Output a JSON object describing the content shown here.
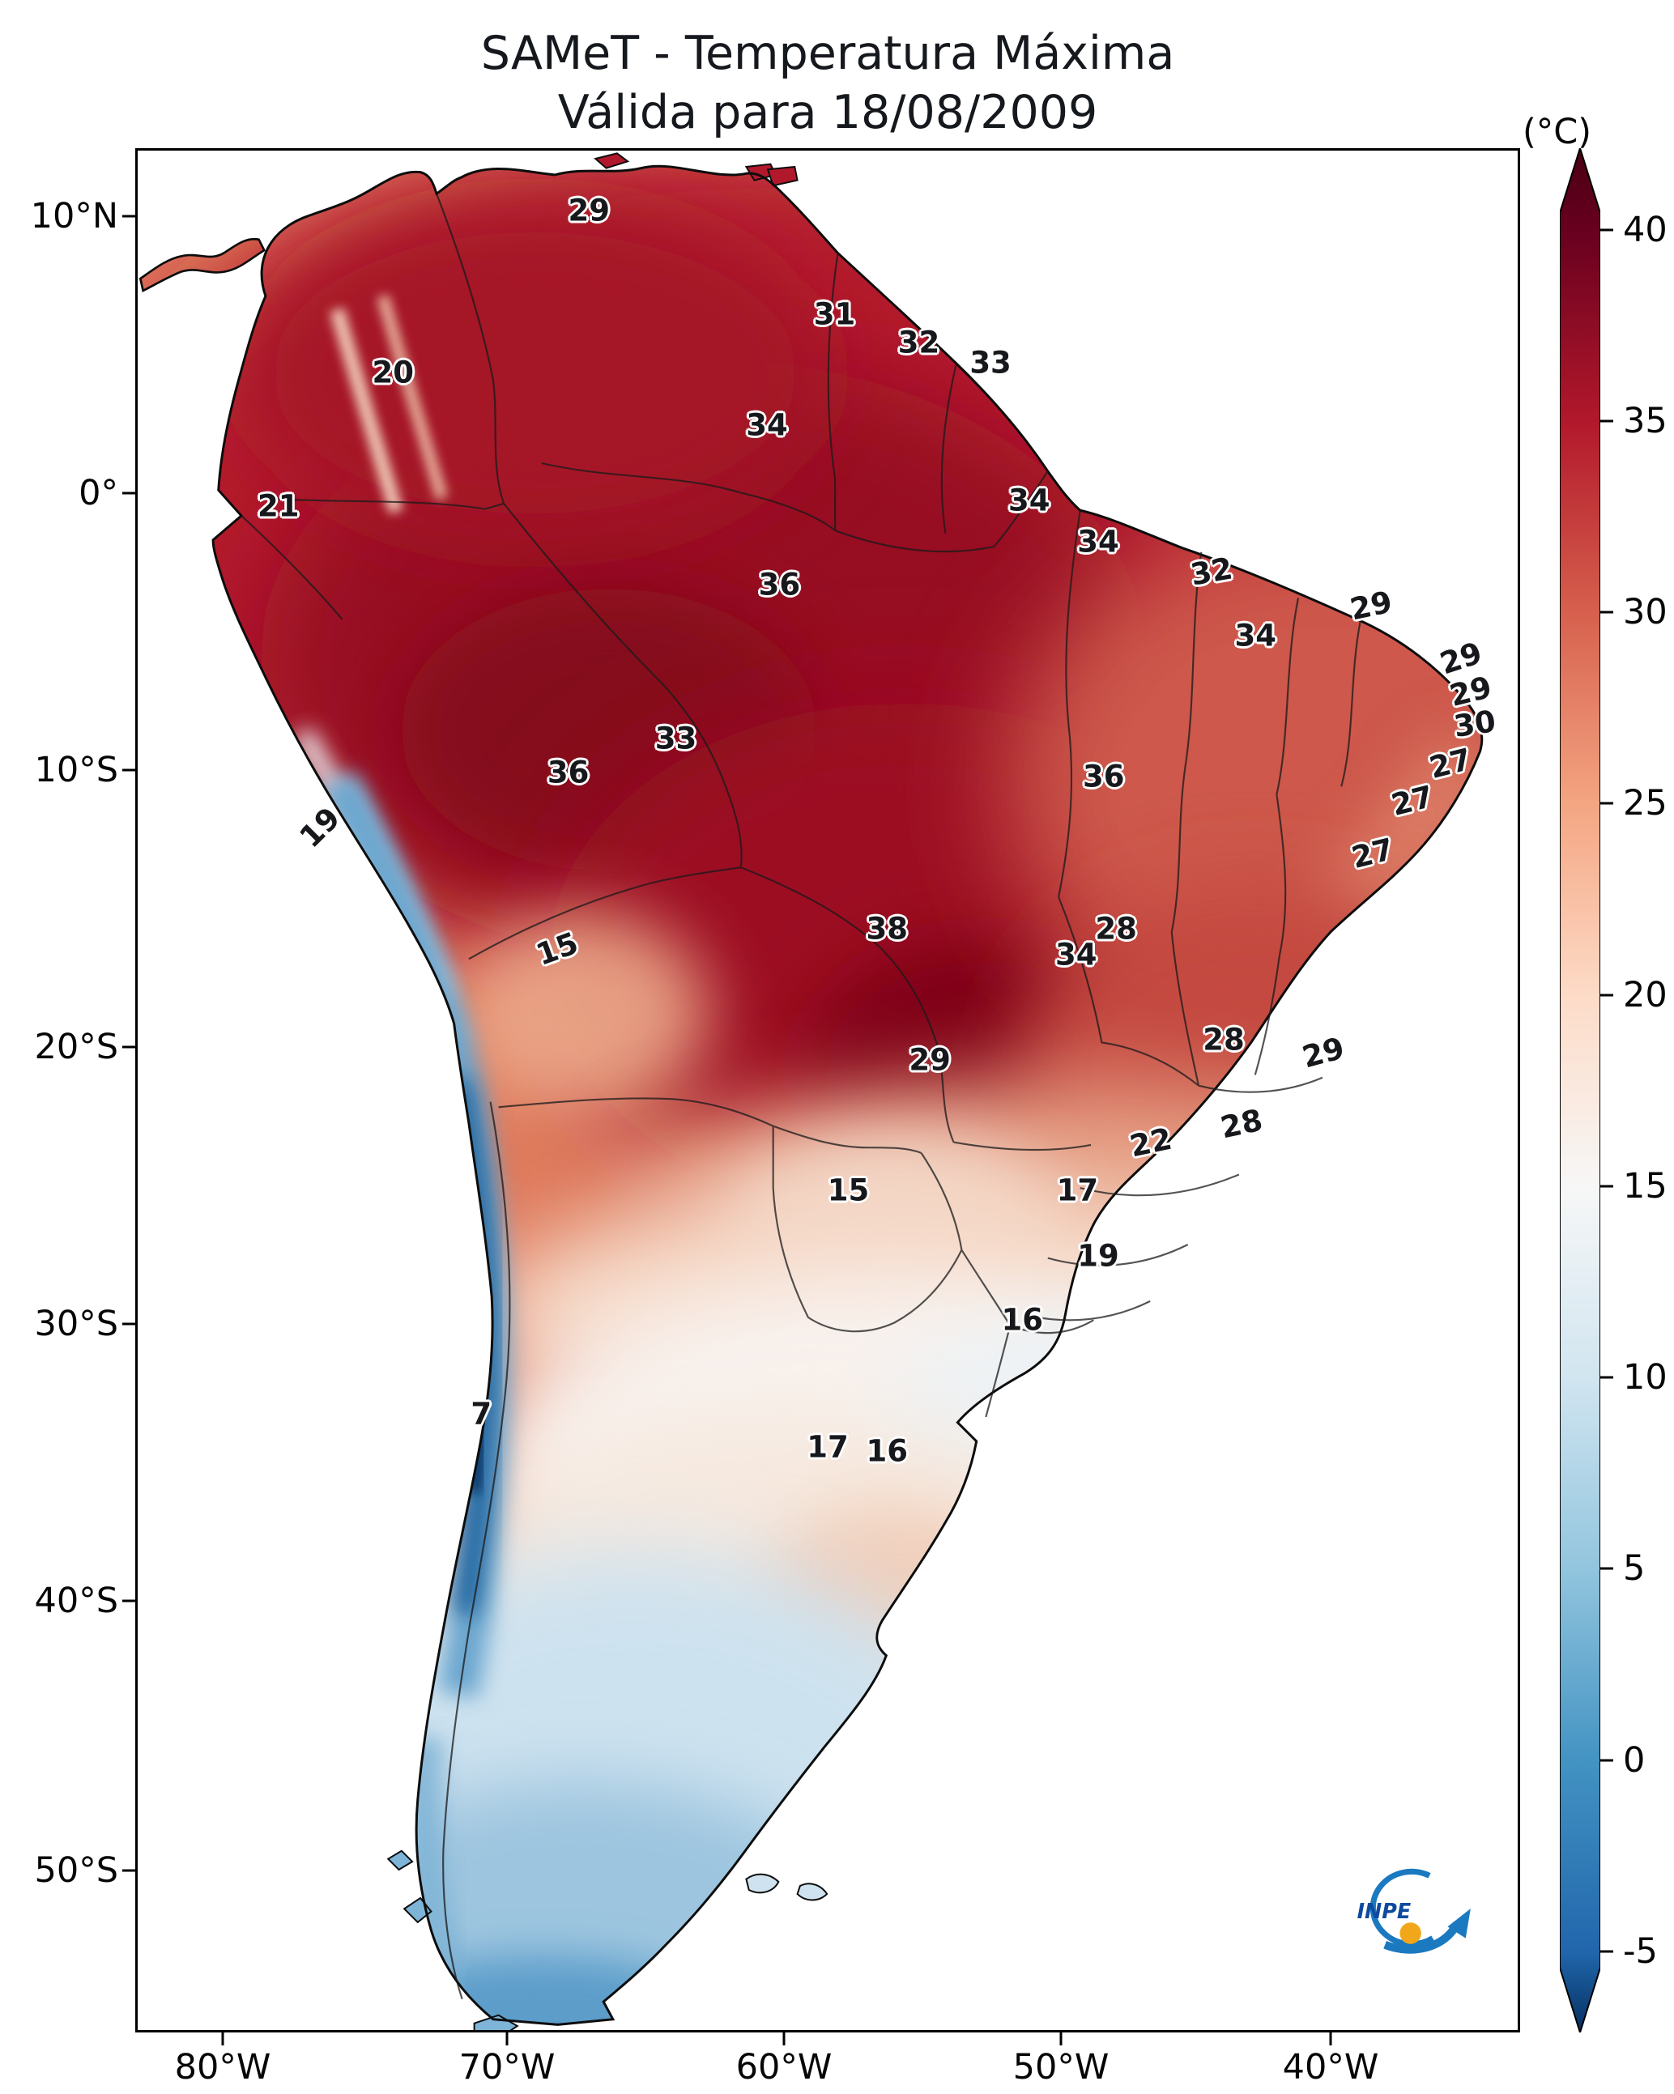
{
  "title": {
    "line1": "SAMeT - Temperatura Máxima",
    "line2": "Válida para 18/08/2009"
  },
  "colorbar": {
    "unit": "(°C)",
    "ticks": [
      "40",
      "35",
      "30",
      "25",
      "20",
      "15",
      "10",
      "5",
      "0",
      "-5"
    ],
    "stops": [
      {
        "value": 40,
        "color": "#67001f"
      },
      {
        "value": 35,
        "color": "#b2182b"
      },
      {
        "value": 30,
        "color": "#d6604d"
      },
      {
        "value": 25,
        "color": "#f4a582"
      },
      {
        "value": 20,
        "color": "#fddbc7"
      },
      {
        "value": 15,
        "color": "#f7f7f7"
      },
      {
        "value": 10,
        "color": "#d1e5f0"
      },
      {
        "value": 5,
        "color": "#92c5de"
      },
      {
        "value": 0,
        "color": "#4393c3"
      },
      {
        "value": -5,
        "color": "#2166ac"
      }
    ],
    "extend_colors": {
      "over": "#4a0013",
      "under": "#053061"
    }
  },
  "axes": {
    "y_ticks": [
      "10°N",
      "0°",
      "10°S",
      "20°S",
      "30°S",
      "40°S",
      "50°S"
    ],
    "x_ticks": [
      "80°W",
      "70°W",
      "60°W",
      "50°W",
      "40°W"
    ]
  },
  "logo": {
    "label": "INPE"
  },
  "chart_data": {
    "type": "heatmap",
    "title": "SAMeT - Temperatura Máxima",
    "subtitle": "Válida para 18/08/2009",
    "variable": "Temperatura Máxima",
    "valid_date": "18/08/2009",
    "unit": "°C",
    "colormap": "RdBu_r",
    "colorbar_ticks": [
      40,
      35,
      30,
      25,
      20,
      15,
      10,
      5,
      0,
      -5
    ],
    "colorbar_extended_both_ends": true,
    "lat_ticks": [
      "10°N",
      "0°",
      "10°S",
      "20°S",
      "30°S",
      "40°S",
      "50°S"
    ],
    "lon_ticks": [
      "80°W",
      "70°W",
      "60°W",
      "50°W",
      "40°W"
    ],
    "labels": [
      {
        "v": "29",
        "x": 32.7,
        "y": 3.2
      },
      {
        "v": "20",
        "x": 18.5,
        "y": 11.8
      },
      {
        "v": "31",
        "x": 50.5,
        "y": 8.7
      },
      {
        "v": "32",
        "x": 56.6,
        "y": 10.2
      },
      {
        "v": "33",
        "x": 61.8,
        "y": 11.3
      },
      {
        "v": "34",
        "x": 45.6,
        "y": 14.6
      },
      {
        "v": "21",
        "x": 10.2,
        "y": 18.9
      },
      {
        "v": "34",
        "x": 64.6,
        "y": 18.6
      },
      {
        "v": "34",
        "x": 69.6,
        "y": 20.8
      },
      {
        "v": "32",
        "x": 77.8,
        "y": 22.4,
        "r": -10
      },
      {
        "v": "36",
        "x": 46.5,
        "y": 23.1
      },
      {
        "v": "29",
        "x": 89.4,
        "y": 24.2,
        "r": -12
      },
      {
        "v": "34",
        "x": 81.0,
        "y": 25.8
      },
      {
        "v": "29",
        "x": 95.9,
        "y": 27.0,
        "r": -18
      },
      {
        "v": "29",
        "x": 96.6,
        "y": 28.8,
        "r": -14
      },
      {
        "v": "30",
        "x": 96.9,
        "y": 30.5,
        "r": -8
      },
      {
        "v": "33",
        "x": 39.0,
        "y": 31.3
      },
      {
        "v": "27",
        "x": 95.1,
        "y": 32.6,
        "r": -14
      },
      {
        "v": "36",
        "x": 31.2,
        "y": 33.1
      },
      {
        "v": "36",
        "x": 70.0,
        "y": 33.3
      },
      {
        "v": "27",
        "x": 92.4,
        "y": 34.6,
        "r": -14
      },
      {
        "v": "19",
        "x": 13.2,
        "y": 36.0,
        "r": -45
      },
      {
        "v": "27",
        "x": 89.5,
        "y": 37.4,
        "r": -14
      },
      {
        "v": "15",
        "x": 30.4,
        "y": 42.5,
        "r": -20
      },
      {
        "v": "38",
        "x": 54.3,
        "y": 41.4
      },
      {
        "v": "28",
        "x": 70.9,
        "y": 41.4
      },
      {
        "v": "34",
        "x": 68.0,
        "y": 42.8
      },
      {
        "v": "28",
        "x": 78.7,
        "y": 47.3
      },
      {
        "v": "29",
        "x": 57.4,
        "y": 48.4
      },
      {
        "v": "29",
        "x": 85.9,
        "y": 48.0,
        "r": -15
      },
      {
        "v": "28",
        "x": 80.0,
        "y": 51.8,
        "r": -12
      },
      {
        "v": "22",
        "x": 73.4,
        "y": 52.8,
        "r": -12
      },
      {
        "v": "15",
        "x": 51.5,
        "y": 55.3
      },
      {
        "v": "17",
        "x": 68.1,
        "y": 55.3
      },
      {
        "v": "19",
        "x": 69.6,
        "y": 58.8
      },
      {
        "v": "16",
        "x": 64.1,
        "y": 62.2
      },
      {
        "v": "7",
        "x": 24.9,
        "y": 67.2
      },
      {
        "v": "17",
        "x": 50.0,
        "y": 69.0
      },
      {
        "v": "16",
        "x": 54.3,
        "y": 69.2
      }
    ]
  }
}
